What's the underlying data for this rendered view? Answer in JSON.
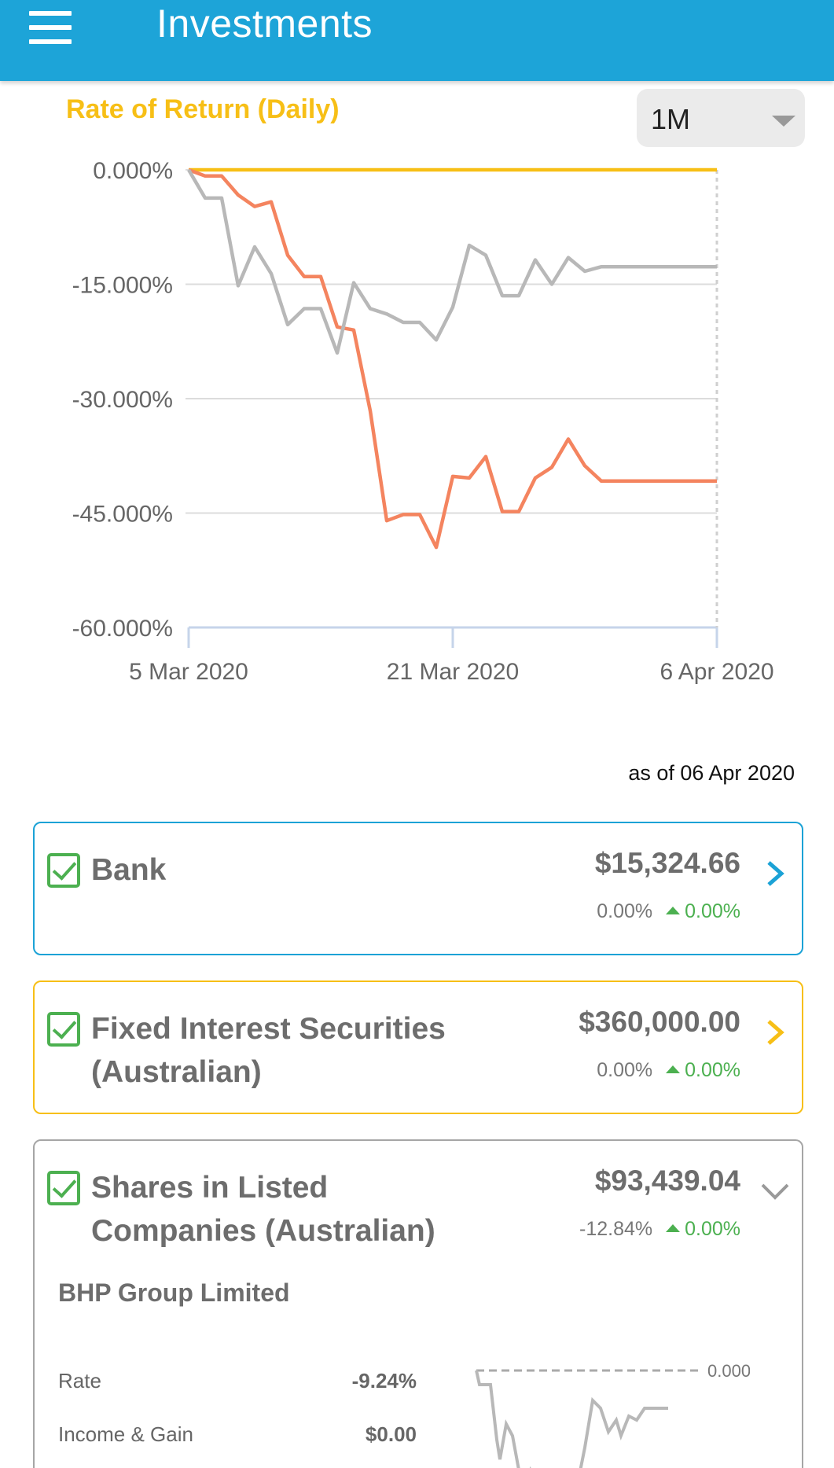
{
  "app": {
    "title": "Investments"
  },
  "chart": {
    "title": "Rate of Return (Daily)",
    "range": "1M",
    "as_of": "as of 06 Apr 2020"
  },
  "chart_data": {
    "type": "line",
    "ylim": [
      -60,
      0
    ],
    "yticks": [
      "0.000%",
      "-15.000%",
      "-30.000%",
      "-45.000%",
      "-60.000%"
    ],
    "xticks": [
      "5 Mar 2020",
      "21 Mar 2020",
      "6 Apr 2020"
    ],
    "x_range": [
      "2020-03-05",
      "2020-04-06"
    ],
    "grid": true,
    "series": [
      {
        "color": "#f7bf16",
        "x": [
          "2020-03-05",
          "2020-04-06"
        ],
        "y": [
          0,
          0
        ]
      },
      {
        "color": "#f4845f",
        "x": [
          "2020-03-05",
          "2020-03-06",
          "2020-03-07",
          "2020-03-08",
          "2020-03-09",
          "2020-03-10",
          "2020-03-11",
          "2020-03-12",
          "2020-03-13",
          "2020-03-14",
          "2020-03-15",
          "2020-03-16",
          "2020-03-17",
          "2020-03-18",
          "2020-03-19",
          "2020-03-20",
          "2020-03-21",
          "2020-03-22",
          "2020-03-23",
          "2020-03-24",
          "2020-03-25",
          "2020-03-26",
          "2020-03-27",
          "2020-03-28",
          "2020-03-29",
          "2020-03-30",
          "2020-03-31",
          "2020-04-01",
          "2020-04-02",
          "2020-04-03",
          "2020-04-04",
          "2020-04-05",
          "2020-04-06"
        ],
        "y": [
          0,
          -0.8,
          -0.8,
          -3.3,
          -4.8,
          -4.2,
          -11.2,
          -14,
          -14,
          -20.6,
          -21,
          -31.6,
          -46,
          -45.2,
          -45.2,
          -49.5,
          -40.2,
          -40.4,
          -37.6,
          -44.8,
          -44.8,
          -40.4,
          -39,
          -35.3,
          -38.8,
          -40.8,
          -40.8,
          -40.8,
          -40.8,
          -40.8,
          -40.8,
          -40.8,
          -40.8
        ]
      },
      {
        "color": "#b8b8b8",
        "x": [
          "2020-03-05",
          "2020-03-06",
          "2020-03-07",
          "2020-03-08",
          "2020-03-09",
          "2020-03-10",
          "2020-03-11",
          "2020-03-12",
          "2020-03-13",
          "2020-03-14",
          "2020-03-15",
          "2020-03-16",
          "2020-03-17",
          "2020-03-18",
          "2020-03-19",
          "2020-03-20",
          "2020-03-21",
          "2020-03-22",
          "2020-03-23",
          "2020-03-24",
          "2020-03-25",
          "2020-03-26",
          "2020-03-27",
          "2020-03-28",
          "2020-03-29",
          "2020-03-30",
          "2020-03-31",
          "2020-04-01",
          "2020-04-02",
          "2020-04-03",
          "2020-04-04",
          "2020-04-05",
          "2020-04-06"
        ],
        "y": [
          0,
          -3.7,
          -3.7,
          -15.2,
          -10.1,
          -13.6,
          -20.3,
          -18.2,
          -18.2,
          -24,
          -14.8,
          -18.2,
          -18.9,
          -20,
          -20,
          -22.3,
          -18,
          -9.9,
          -11.2,
          -16.5,
          -16.5,
          -11.8,
          -15,
          -11.5,
          -13.3,
          -12.7,
          -12.7,
          -12.7,
          -12.7,
          -12.7,
          -12.7,
          -12.7,
          -12.7
        ]
      }
    ]
  },
  "cards": {
    "bank": {
      "name": "Bank",
      "amount": "$15,324.66",
      "pct": "0.00%",
      "change": "0.00%"
    },
    "fixed": {
      "name": "Fixed Interest Securities (Australian)",
      "amount": "$360,000.00",
      "pct": "0.00%",
      "change": "0.00%"
    },
    "shares": {
      "name": "Shares in Listed Companies (Australian)",
      "amount": "$93,439.04",
      "pct": "-12.84%",
      "change": "0.00%",
      "holding": {
        "name": "BHP Group Limited",
        "rate_label": "Rate",
        "rate_value": "-9.24%",
        "income_label": "Income & Gain",
        "income_value": "$0.00",
        "mini_chart_zero": "0.000%"
      }
    }
  },
  "colors": {
    "appbar": "#1da4d8",
    "bank": "#1ba2d6",
    "fixed": "#f7bf16",
    "positive": "#4cb050"
  }
}
